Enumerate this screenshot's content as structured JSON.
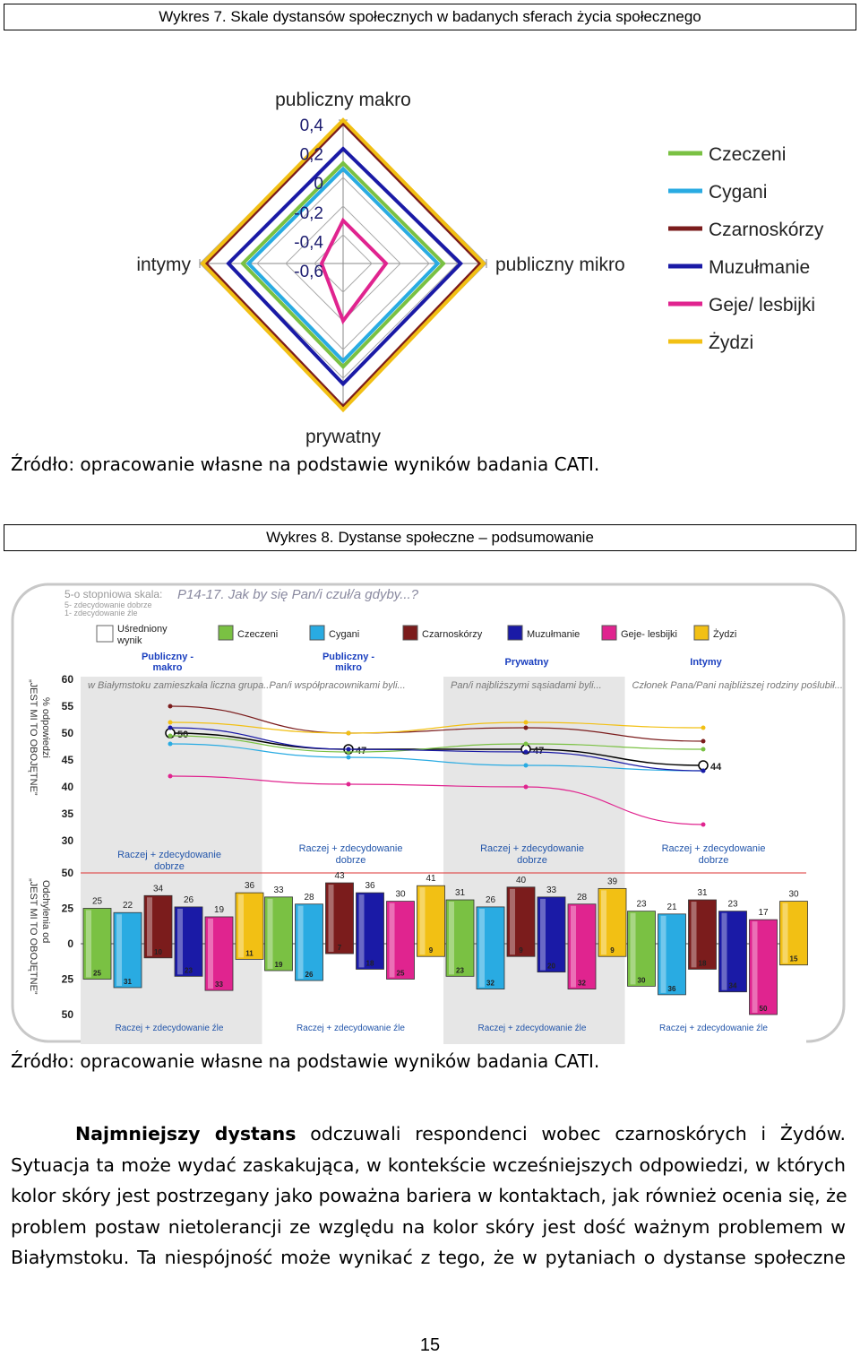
{
  "fig7": {
    "caption": "Wykres 7. Skale dystansów społecznych w badanych sferach życia społecznego",
    "axes": [
      "publiczny makro",
      "publiczny mikro",
      "prywatny",
      "intymy"
    ],
    "ticks": [
      "0,4",
      "0,2",
      "0",
      "-0,2",
      "-0,4",
      "-0,6"
    ],
    "source": "Źródło: opracowanie własne na podstawie wyników badania CATI."
  },
  "fig8": {
    "caption_prefix": "Wykres 8.",
    "caption_text": "Dystanse społeczne – podsumowanie",
    "scale_title": "5-o stopniowa skala:",
    "scale_5": "5- zdecydowanie dobrze",
    "scale_1": "1- zdecydowanie źle",
    "question": "P14-17. Jak by się Pan/i czuł/a gdyby...?",
    "legend_avg": [
      "Uśredniony",
      "wynik"
    ],
    "y_top_label_1": "% odpowiedzi",
    "y_top_label_2": "„JEST MI TO OBOJĘTNE”",
    "y_bottom_label_1": "Odchylenia od",
    "y_bottom_label_2": "„JEST MI TO OBOJĘTNE”",
    "good_label_1": "Raczej + zdecydowanie",
    "good_label_2": "dobrze",
    "bad_label": "Raczej + zdecydowanie źle",
    "top_ticks": [
      "60",
      "55",
      "50",
      "45",
      "40",
      "35",
      "30"
    ],
    "bottom_ticks": [
      "50",
      "25",
      "0",
      "25",
      "50"
    ],
    "source": "Źródło: opracowanie własne na podstawie wyników badania CATI."
  },
  "paragraph": {
    "bold_start": "Najmniejszy dystans",
    "line1_rest": "odczuwali respondenci wobec czarnoskórych i Żydów.",
    "line2": "Sytuacja ta może wydać zaskakująca, w kontekście wcześniejszych odpowiedzi, w których",
    "line3": "kolor skóry jest postrzegany jako poważna bariera w kontaktach, jak również ocenia się, że",
    "line4": "problem postaw nietolerancji ze względu na kolor skóry jest dość ważnym problemem w",
    "line5": "Białymstoku. Ta niespójność może wynikać z tego, że w pytaniach o dystanse społeczne"
  },
  "page_number": "15",
  "chart_data": [
    {
      "type": "radar",
      "title": "Wykres 7. Skale dystansów społecznych w badanych sferach życia społecznego",
      "axes": [
        "publiczny makro",
        "publiczny mikro",
        "prywatny",
        "intymy"
      ],
      "range": [
        -0.6,
        0.4
      ],
      "series": [
        {
          "name": "Czeczeni",
          "color": "#7ac143",
          "values": [
            0.1,
            0.1,
            0.12,
            0.1
          ]
        },
        {
          "name": "Cygani",
          "color": "#29abe2",
          "values": [
            0.06,
            0.06,
            0.08,
            0.06
          ]
        },
        {
          "name": "Czarnoskórzy",
          "color": "#7b1c1c",
          "values": [
            0.38,
            0.36,
            0.4,
            0.36
          ]
        },
        {
          "name": "Muzułmanie",
          "color": "#1a1aa6",
          "values": [
            0.2,
            0.22,
            0.24,
            0.2
          ]
        },
        {
          "name": "Geje/ lesbijki",
          "color": "#e0248f",
          "values": [
            -0.3,
            -0.3,
            -0.2,
            -0.45
          ]
        },
        {
          "name": "Żydzi",
          "color": "#f2c014",
          "values": [
            0.4,
            0.38,
            0.42,
            0.38
          ]
        }
      ]
    },
    {
      "type": "line",
      "title": "P14-17. Jak by się Pan/i czuł/a gdyby...?",
      "ylabel": "% odpowiedzi „JEST MI TO OBOJĘTNE”",
      "ylim": [
        30,
        60
      ],
      "categories": [
        "Publiczny - makro",
        "Publiczny - mikro",
        "Prywatny",
        "Intymy"
      ],
      "sublabels": [
        "w Białymstoku zamieszkała liczna grupa...",
        "Pan/i współpracownikami byli...",
        "Pan/i najbliższymi sąsiadami byli...",
        "Członek Pana/Pani najbliższej rodziny poślubił..."
      ],
      "series": [
        {
          "name": "Uśredniony wynik",
          "color": "#000000",
          "values": [
            50,
            47,
            47,
            44
          ],
          "labels": [
            "50",
            "47",
            "47",
            "44"
          ]
        },
        {
          "name": "Czeczeni",
          "color": "#7ac143",
          "values": [
            49.5,
            46.5,
            48,
            47
          ]
        },
        {
          "name": "Cygani",
          "color": "#29abe2",
          "values": [
            48,
            45.5,
            44,
            43
          ]
        },
        {
          "name": "Czarnoskórzy",
          "color": "#7b1c1c",
          "values": [
            55,
            50,
            51,
            48.5
          ]
        },
        {
          "name": "Muzułmanie",
          "color": "#1a1aa6",
          "values": [
            51,
            47,
            46.5,
            43
          ]
        },
        {
          "name": "Geje- lesbijki",
          "color": "#e0248f",
          "values": [
            42,
            40.5,
            40,
            33
          ]
        },
        {
          "name": "Żydzi",
          "color": "#f2c014",
          "values": [
            52,
            50,
            52,
            51
          ]
        }
      ]
    },
    {
      "type": "bar",
      "title": "Odchylenia od „JEST MI TO OBOJĘTNE”",
      "ylim": [
        -50,
        50
      ],
      "categories": [
        "Publiczny - makro",
        "Publiczny - mikro",
        "Prywatny",
        "Intymy"
      ],
      "series": [
        {
          "name": "Czeczeni",
          "color": "#7ac143",
          "good": [
            25,
            33,
            31,
            23
          ],
          "bad": [
            25,
            19,
            23,
            30
          ]
        },
        {
          "name": "Cygani",
          "color": "#29abe2",
          "good": [
            22,
            28,
            26,
            21
          ],
          "bad": [
            31,
            26,
            32,
            36
          ]
        },
        {
          "name": "Czarnoskórzy",
          "color": "#7b1c1c",
          "good": [
            34,
            43,
            40,
            31
          ],
          "bad": [
            10,
            7,
            9,
            18
          ]
        },
        {
          "name": "Muzułmanie",
          "color": "#1a1aa6",
          "good": [
            26,
            36,
            33,
            23
          ],
          "bad": [
            23,
            18,
            20,
            34
          ]
        },
        {
          "name": "Geje- lesbijki",
          "color": "#e0248f",
          "good": [
            19,
            30,
            28,
            17
          ],
          "bad": [
            33,
            25,
            32,
            50
          ]
        },
        {
          "name": "Żydzi",
          "color": "#f2c014",
          "good": [
            36,
            41,
            39,
            30
          ],
          "bad": [
            11,
            9,
            9,
            15
          ]
        }
      ]
    }
  ]
}
